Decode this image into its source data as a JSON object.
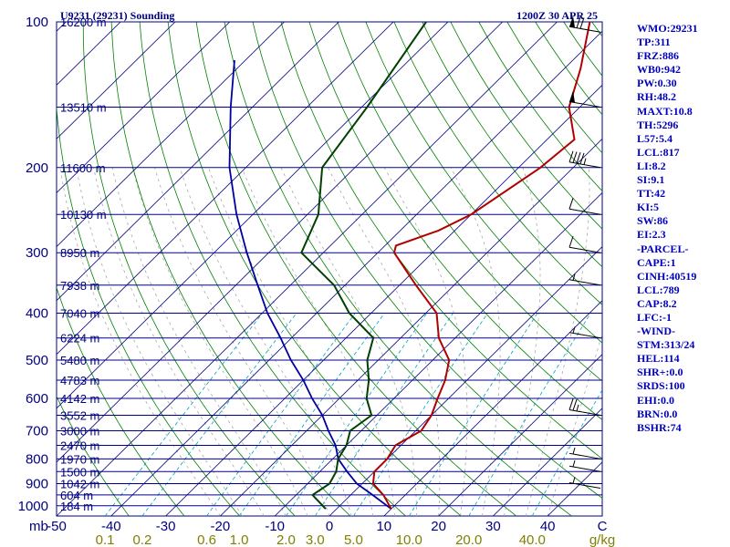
{
  "header": {
    "station_title": "U9231 (29231) Sounding",
    "valid_time": "1200Z 30 APR 25"
  },
  "colors": {
    "isobar": "#00008b",
    "isotherm": "#000080",
    "dry_adiabat": "#008000",
    "moist_adiabat": "#c8c8c8",
    "mixing_ratio": "#00a0c0",
    "temperature": "#b00000",
    "dewpoint": "#004000",
    "parcel": "#0000a0",
    "axis_text_temp": "#000080",
    "axis_text_mixing": "#808000",
    "wind_barb": "#000000",
    "side_text": "#0000c0"
  },
  "chart_data": {
    "type": "line",
    "title": "U9231 (29231) Sounding",
    "subtitle": "1200Z 30 APR 25",
    "pressure_unit_label": "mb",
    "pressure_ticks": [
      "100",
      "200",
      "300",
      "400",
      "500",
      "600",
      "700",
      "800",
      "900",
      "1000"
    ],
    "height_labels": [
      {
        "p": 100,
        "label": "16200 m"
      },
      {
        "p": 150,
        "label": "13510 m"
      },
      {
        "p": 200,
        "label": "11600 m"
      },
      {
        "p": 250,
        "label": "10130 m"
      },
      {
        "p": 300,
        "label": "8950 m"
      },
      {
        "p": 350,
        "label": "7938 m"
      },
      {
        "p": 400,
        "label": "7040 m"
      },
      {
        "p": 450,
        "label": "6224 m"
      },
      {
        "p": 500,
        "label": "5480 m"
      },
      {
        "p": 550,
        "label": "4783 m"
      },
      {
        "p": 600,
        "label": "4142 m"
      },
      {
        "p": 650,
        "label": "3552 m"
      },
      {
        "p": 700,
        "label": "3000 m"
      },
      {
        "p": 750,
        "label": "2470 m"
      },
      {
        "p": 800,
        "label": "1970 m"
      },
      {
        "p": 850,
        "label": "1500 m"
      },
      {
        "p": 900,
        "label": "1042 m"
      },
      {
        "p": 950,
        "label": "604 m"
      },
      {
        "p": 1000,
        "label": "184 m"
      }
    ],
    "temperature_ticks": [
      "-50",
      "-40",
      "-30",
      "-20",
      "-10",
      "0",
      "10",
      "20",
      "30",
      "40",
      "C"
    ],
    "mixing_ratio_ticks": [
      {
        "w": 0.1,
        "label": "0.1"
      },
      {
        "w": 0.2,
        "label": "0.2"
      },
      {
        "w": 0.6,
        "label": "0.6"
      },
      {
        "w": 1.0,
        "label": "1.0"
      },
      {
        "w": 2.0,
        "label": "2.0"
      },
      {
        "w": 3.0,
        "label": "3.0"
      },
      {
        "w": 5.0,
        "label": "5.0"
      },
      {
        "w": 10.0,
        "label": "10.0"
      },
      {
        "w": 20.0,
        "label": "20.0"
      },
      {
        "w": 40.0,
        "label": "40.0"
      }
    ],
    "mixing_ratio_unit": "g/kg",
    "p_range": [
      100,
      1050
    ],
    "t_range_at_bottom": [
      -50,
      50
    ],
    "temperature_profile": [
      {
        "p": 1015,
        "t": 10
      },
      {
        "p": 950,
        "t": 6
      },
      {
        "p": 900,
        "t": 2
      },
      {
        "p": 850,
        "t": 0
      },
      {
        "p": 800,
        "t": 0
      },
      {
        "p": 750,
        "t": -1
      },
      {
        "p": 700,
        "t": 1
      },
      {
        "p": 650,
        "t": 0
      },
      {
        "p": 600,
        "t": -2
      },
      {
        "p": 550,
        "t": -4
      },
      {
        "p": 500,
        "t": -7
      },
      {
        "p": 450,
        "t": -13
      },
      {
        "p": 400,
        "t": -18
      },
      {
        "p": 350,
        "t": -27
      },
      {
        "p": 300,
        "t": -37
      },
      {
        "p": 290,
        "t": -38
      },
      {
        "p": 270,
        "t": -33
      },
      {
        "p": 250,
        "t": -30
      },
      {
        "p": 200,
        "t": -26
      },
      {
        "p": 175,
        "t": -25
      },
      {
        "p": 150,
        "t": -32
      },
      {
        "p": 125,
        "t": -37
      },
      {
        "p": 100,
        "t": -44
      }
    ],
    "dewpoint_profile": [
      {
        "p": 1015,
        "td": -2
      },
      {
        "p": 950,
        "td": -7
      },
      {
        "p": 900,
        "td": -6
      },
      {
        "p": 850,
        "td": -7
      },
      {
        "p": 800,
        "td": -9
      },
      {
        "p": 750,
        "td": -10
      },
      {
        "p": 700,
        "td": -12
      },
      {
        "p": 650,
        "td": -11
      },
      {
        "p": 600,
        "td": -15
      },
      {
        "p": 550,
        "td": -18
      },
      {
        "p": 500,
        "td": -22
      },
      {
        "p": 450,
        "td": -25
      },
      {
        "p": 400,
        "td": -34
      },
      {
        "p": 350,
        "td": -42
      },
      {
        "p": 300,
        "td": -54
      },
      {
        "p": 250,
        "td": -58
      },
      {
        "p": 200,
        "td": -66
      },
      {
        "p": 150,
        "td": -69
      },
      {
        "p": 100,
        "td": -74
      }
    ],
    "parcel_profile": [
      {
        "p": 1015,
        "t": 10
      },
      {
        "p": 950,
        "t": 4
      },
      {
        "p": 900,
        "t": -1
      },
      {
        "p": 850,
        "t": -5
      },
      {
        "p": 800,
        "t": -9
      },
      {
        "p": 750,
        "t": -12
      },
      {
        "p": 700,
        "t": -16
      },
      {
        "p": 650,
        "t": -20
      },
      {
        "p": 600,
        "t": -25
      },
      {
        "p": 550,
        "t": -30
      },
      {
        "p": 500,
        "t": -36
      },
      {
        "p": 450,
        "t": -42
      },
      {
        "p": 400,
        "t": -49
      },
      {
        "p": 350,
        "t": -56
      },
      {
        "p": 300,
        "t": -64
      },
      {
        "p": 250,
        "t": -73
      },
      {
        "p": 200,
        "t": -83
      },
      {
        "p": 150,
        "t": -94
      },
      {
        "p": 120,
        "t": -102
      }
    ],
    "wind_barbs": [
      {
        "p": 105,
        "speed": 70
      },
      {
        "p": 150,
        "speed": 50
      },
      {
        "p": 200,
        "speed": 45
      },
      {
        "p": 250,
        "speed": 10
      },
      {
        "p": 300,
        "speed": 10
      },
      {
        "p": 350,
        "speed": 5
      },
      {
        "p": 450,
        "speed": 5
      },
      {
        "p": 650,
        "speed": 25
      },
      {
        "p": 800,
        "speed": 5
      },
      {
        "p": 850,
        "speed": 5
      },
      {
        "p": 920,
        "speed": 5
      }
    ]
  },
  "side_panel": [
    "WMO:29231",
    "TP:311",
    "FRZ:886",
    "WB0:942",
    "PW:0.30",
    "RH:48.2",
    "MAXT:10.8",
    "TH:5296",
    "L57:5.4",
    "LCL:817",
    "LI:8.2",
    "SI:9.1",
    "TT:42",
    "KI:5",
    "SW:86",
    "EI:2.3",
    "-PARCEL-",
    "CAPE:1",
    "CINH:40519",
    "LCL:789",
    "CAP:8.2",
    "LFC:-1",
    "-WIND-",
    "STM:313/24",
    "HEL:114",
    "SHR+:0.0",
    "SRDS:100",
    "EHI:0.0",
    "BRN:0.0",
    "BSHR:74"
  ]
}
